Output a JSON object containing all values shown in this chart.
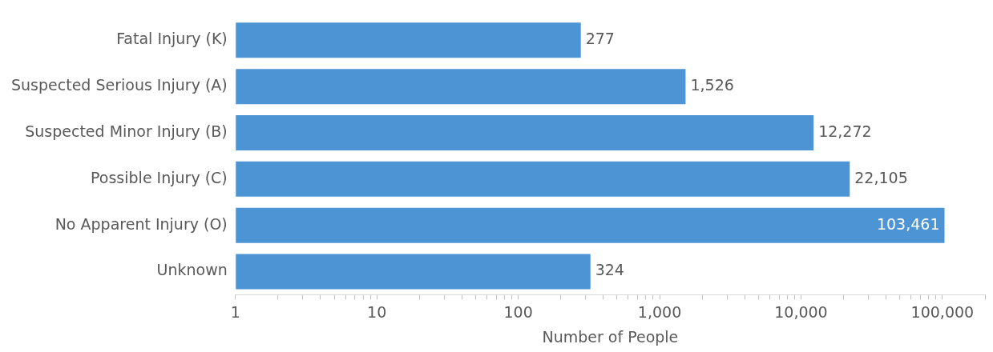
{
  "chart_data": {
    "type": "bar",
    "orientation": "horizontal",
    "log": "x",
    "xlabel": "Number of People",
    "categories": [
      "Fatal Injury (K)",
      "Suspected Serious Injury (A)",
      "Suspected Minor Injury (B)",
      "Possible Injury (C)",
      "No Apparent Injury (O)",
      "Unknown"
    ],
    "values": [
      277,
      1526,
      12272,
      22105,
      103461,
      324
    ],
    "color": "#4d94d5",
    "xlim": [
      1,
      200000
    ],
    "xticks": [
      1,
      {
        "value": 2,
        "label": null
      },
      {
        "value": 3,
        "label": null
      },
      {
        "value": 4,
        "label": null
      },
      {
        "value": 5,
        "label": null
      },
      {
        "value": 6,
        "label": null
      },
      {
        "value": 7,
        "label": null
      },
      {
        "value": 8,
        "label": null
      },
      {
        "value": 9,
        "label": null
      },
      {
        "value": 10,
        "label": "10"
      },
      {
        "value": 20,
        "label": null
      },
      {
        "value": 30,
        "label": null
      },
      {
        "value": 40,
        "label": null
      },
      {
        "value": 50,
        "label": null
      },
      {
        "value": 60,
        "label": null
      },
      {
        "value": 70,
        "label": null
      },
      {
        "value": 80,
        "label": null
      },
      {
        "value": 90,
        "label": null
      },
      {
        "value": 100,
        "label": "100"
      },
      {
        "value": 200,
        "label": null
      },
      {
        "value": 300,
        "label": null
      },
      {
        "value": 400,
        "label": null
      },
      {
        "value": 500,
        "label": null
      },
      {
        "value": 600,
        "label": null
      },
      {
        "value": 700,
        "label": null
      },
      {
        "value": 800,
        "label": null
      },
      {
        "value": 900,
        "label": null
      },
      {
        "value": 1000,
        "label": "1,000"
      },
      {
        "value": 2000,
        "label": null
      },
      {
        "value": 3000,
        "label": null
      },
      {
        "value": 4000,
        "label": null
      },
      {
        "value": 5000,
        "label": null
      },
      {
        "value": 6000,
        "label": null
      },
      {
        "value": 7000,
        "label": null
      },
      {
        "value": 8000,
        "label": null
      },
      {
        "value": 9000,
        "label": null
      },
      {
        "value": 10000,
        "label": "10,000"
      },
      {
        "value": 20000,
        "label": null
      },
      {
        "value": 30000,
        "label": null
      },
      {
        "value": 40000,
        "label": null
      },
      {
        "value": 50000,
        "label": null
      },
      {
        "value": 60000,
        "label": null
      },
      {
        "value": 70000,
        "label": null
      },
      {
        "value": 80000,
        "label": null
      },
      {
        "value": 90000,
        "label": null
      },
      {
        "value": 100000,
        "label": "100,000"
      },
      {
        "value": 200000,
        "label": null
      }
    ],
    "value_labels": [
      "277",
      "1,526",
      "12,272",
      "22,105",
      "103,461",
      "324"
    ],
    "grid": false,
    "legend": false
  }
}
